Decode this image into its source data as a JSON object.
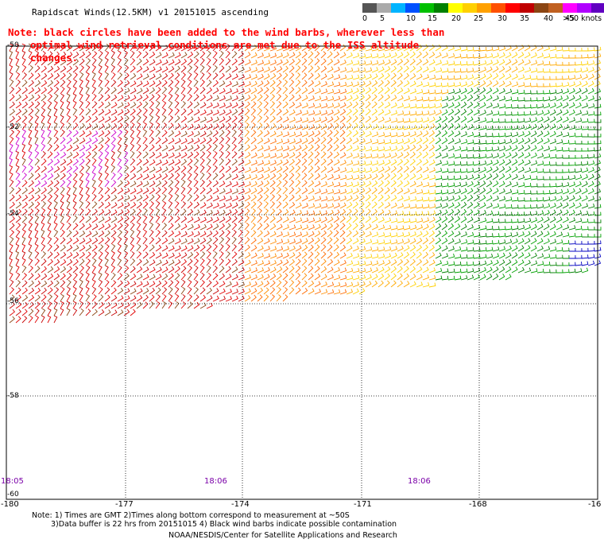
{
  "header": {
    "title": "Rapidscat Winds(12.5KM) v1 20151015 ascending",
    "note_line1": "Note: black circles have been added to the wind barbs, wherever less than",
    "note_line2": "optimal wind retrieval conditions are met due to the ISS altitude changes."
  },
  "color_scale": {
    "colors": [
      "#555555",
      "#aaaaaa",
      "#00b4ff",
      "#0050ff",
      "#00c000",
      "#008000",
      "#ffff00",
      "#ffd000",
      "#ffa000",
      "#ff5000",
      "#ff0000",
      "#c00000",
      "#8b4513",
      "#c06020",
      "#ff00ff",
      "#b000ff",
      "#6000c0",
      "#300060"
    ],
    "labels": [
      "0",
      "5",
      "10",
      "15",
      "20",
      "25",
      "30",
      "35",
      "40",
      "45",
      ">50 knots"
    ]
  },
  "axes": {
    "lon_labels": [
      "-180",
      "-177",
      "-174",
      "-171",
      "-168",
      "-16"
    ],
    "lat_labels": [
      "-50",
      "-52",
      "-54",
      "-56",
      "-58",
      "-60"
    ]
  },
  "time_labels": [
    "18:05",
    "18:06",
    "18:06"
  ],
  "footer": {
    "line1": "Note: 1) Times are GMT 2)Times along bottom correspond to measurement at ~50S",
    "line2": "3)Data buffer is 22 hrs from 20151015 4) Black wind barbs indicate possible contamination",
    "line3": "NOAA/NESDIS/Center for Satellite Applications and Research"
  }
}
